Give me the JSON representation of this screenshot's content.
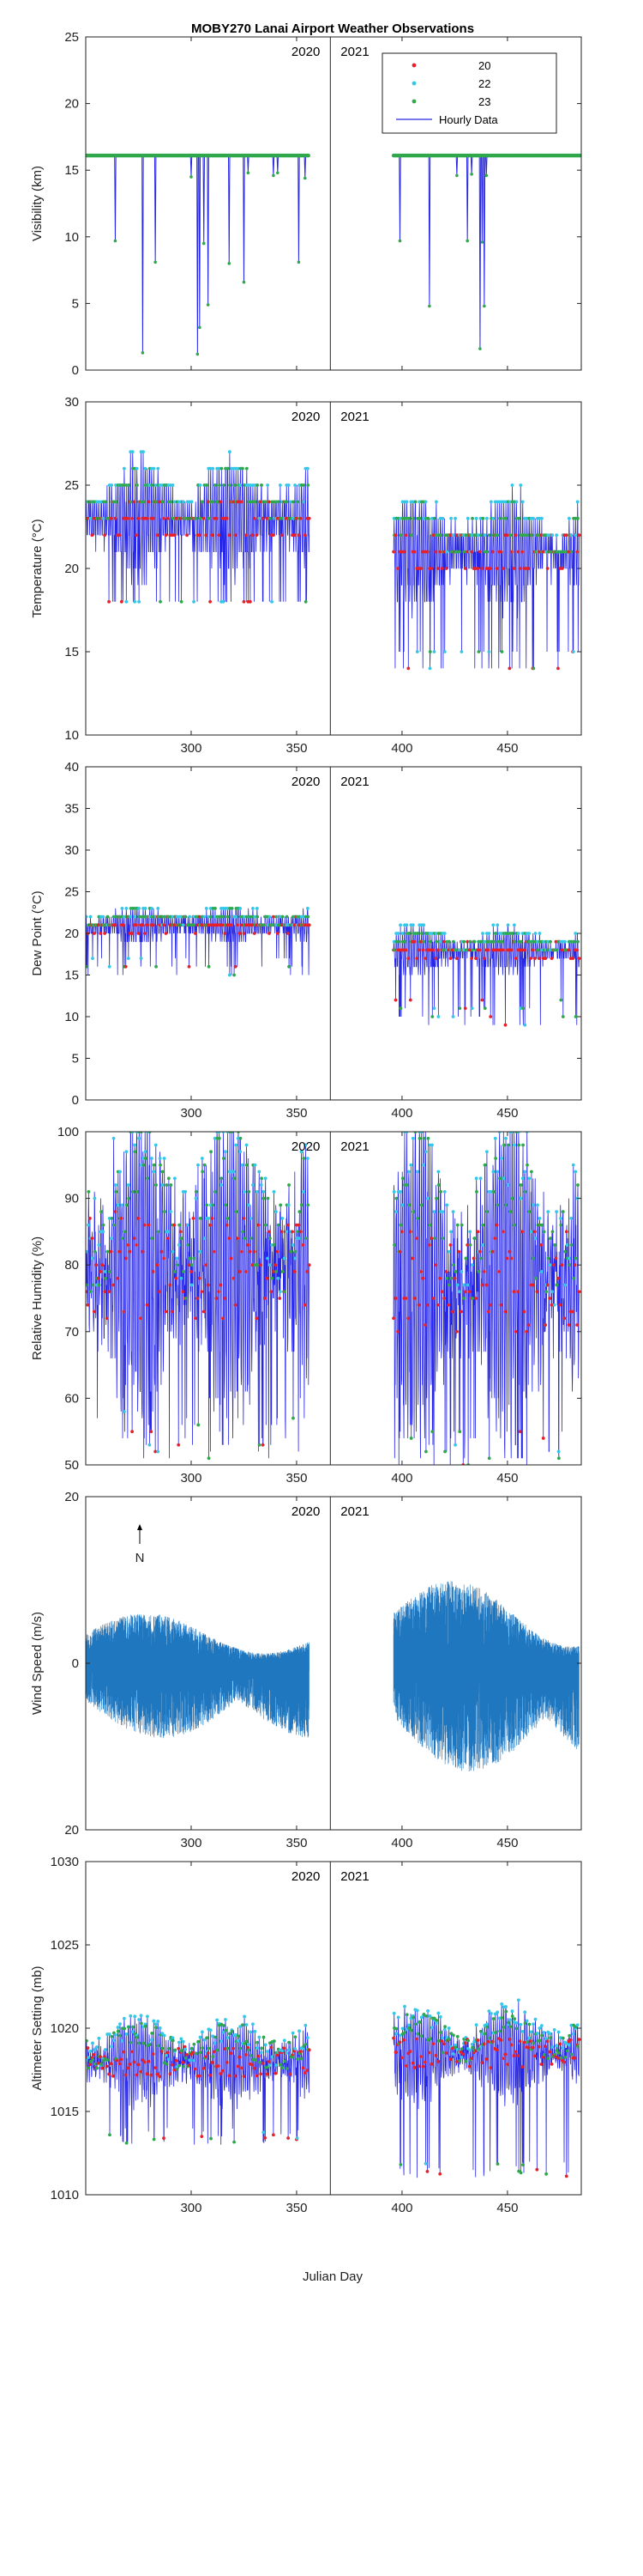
{
  "chart_data": {
    "title": "MOBY270 Lanai Airport Weather Observations",
    "xlabel": "Julian Day",
    "xlim": [
      250,
      485
    ],
    "x_ticks": [
      300,
      350,
      400,
      450
    ],
    "year_boundary": 366,
    "year_labels": [
      "2020",
      "2021"
    ],
    "legend": {
      "placement": "top-right",
      "entries": [
        {
          "label": "20",
          "color": "#e8202a",
          "marker": "dot"
        },
        {
          "label": "22",
          "color": "#33c7e8",
          "marker": "dot"
        },
        {
          "label": "23",
          "color": "#2ea84a",
          "marker": "dot"
        },
        {
          "label": "Hourly Data",
          "color": "#2626e6",
          "marker": "line"
        }
      ]
    },
    "colors": {
      "hourly": "#2626e6",
      "wind": "#1f77c0",
      "h20": "#e8202a",
      "h22": "#33c7e8",
      "h23": "#2ea84a"
    },
    "panels": [
      {
        "type": "line",
        "key": "visibility",
        "ylabel": "Visibility (km)",
        "ylim": [
          0,
          25
        ],
        "yticks": [
          0,
          5,
          10,
          15,
          20,
          25
        ],
        "xtick_labels": false,
        "segments": [
          {
            "start": 250,
            "end": 356,
            "step": 1,
            "values": [
              16.1,
              16.1,
              16.1,
              16.1,
              16.1,
              16.1,
              16.1,
              16.1,
              16.1,
              16.1,
              16.1,
              16.1,
              16.1,
              16.1,
              16.1,
              16.1,
              16.1,
              16.1,
              16.1,
              16.1,
              16.1,
              16.1,
              16.1,
              16.1,
              16.1,
              16.1,
              16.1,
              16.1,
              16.1,
              16.1,
              16.1,
              16.1,
              16.1,
              16.1,
              16.1,
              16.1,
              16.1,
              16.1,
              16.1,
              16.1,
              16.1,
              16.1,
              16.1,
              16.1,
              16.1,
              16.1,
              16.1,
              16.1,
              16.1,
              16.1,
              16.1,
              16.1,
              16.1,
              16.1,
              16.1,
              16.1,
              16.1,
              16.1,
              16.1,
              16.1,
              16.1,
              16.1,
              16.1,
              16.1,
              16.1,
              16.1,
              16.1,
              16.1,
              16.1,
              16.1,
              16.1,
              16.1,
              16.1,
              16.1,
              16.1,
              16.1,
              16.1,
              16.1,
              16.1,
              16.1,
              16.1,
              16.1,
              16.1,
              16.1,
              16.1,
              16.1,
              16.1,
              16.1,
              16.1,
              16.1,
              16.1,
              16.1,
              16.1,
              16.1,
              16.1,
              16.1,
              16.1,
              16.1,
              16.1,
              16.1,
              16.1,
              16.1,
              16.1,
              16.1,
              16.1,
              16.1,
              16.1
            ],
            "dips": [
              [
                264,
                9.7
              ],
              [
                277,
                1.3
              ],
              [
                283,
                8.1
              ],
              [
                300,
                14.5
              ],
              [
                303,
                1.2
              ],
              [
                304,
                3.2
              ],
              [
                306,
                9.5
              ],
              [
                308,
                4.9
              ],
              [
                318,
                8.0
              ],
              [
                325,
                6.6
              ],
              [
                327,
                14.8
              ],
              [
                339,
                14.6
              ],
              [
                341,
                14.8
              ],
              [
                351,
                8.1
              ],
              [
                354,
                14.4
              ]
            ]
          },
          {
            "start": 396,
            "end": 485,
            "step": 1,
            "values": [
              16.1,
              16.1,
              16.1,
              16.1,
              16.1,
              16.1,
              16.1,
              16.1,
              16.1,
              16.1,
              16.1,
              16.1,
              16.1,
              16.1,
              16.1,
              16.1,
              16.1,
              16.1,
              16.1,
              16.1,
              16.1,
              16.1,
              16.1,
              16.1,
              16.1,
              16.1,
              16.1,
              16.1,
              16.1,
              16.1,
              16.1,
              16.1,
              16.1,
              16.1,
              16.1,
              16.1,
              16.1,
              16.1,
              16.1,
              16.1,
              16.1,
              16.1,
              16.1,
              16.1,
              16.1,
              16.1,
              16.1,
              16.1,
              16.1,
              16.1,
              16.1,
              16.1,
              16.1,
              16.1,
              16.1,
              16.1,
              16.1,
              16.1,
              16.1,
              16.1,
              16.1,
              16.1,
              16.1,
              16.1,
              16.1,
              16.1,
              16.1,
              16.1,
              16.1,
              16.1,
              16.1,
              16.1,
              16.1,
              16.1,
              16.1,
              16.1,
              16.1,
              16.1,
              16.1,
              16.1,
              16.1,
              16.1,
              16.1,
              16.1,
              16.1,
              16.1,
              16.1,
              16.1,
              16.1,
              16.1
            ],
            "dips": [
              [
                399,
                9.7
              ],
              [
                413,
                4.8
              ],
              [
                426,
                14.6
              ],
              [
                431,
                9.7
              ],
              [
                433,
                14.7
              ],
              [
                437,
                1.6
              ],
              [
                438,
                9.6
              ],
              [
                439,
                4.8
              ],
              [
                440,
                14.6
              ]
            ]
          }
        ]
      },
      {
        "type": "line",
        "key": "temperature",
        "ylabel": "Temperature (°C)",
        "ylim": [
          10,
          30
        ],
        "yticks": [
          10,
          15,
          20,
          25,
          30
        ],
        "xtick_labels": true,
        "segments": [
          {
            "start": 250,
            "end": 356,
            "base": 23,
            "amp": 3.0,
            "noise": 1.0,
            "spike_lo": 18,
            "hi": 28,
            "lo": 18
          },
          {
            "start": 396,
            "end": 484,
            "base": 21,
            "amp": 3.0,
            "noise": 1.0,
            "spike_lo": 15,
            "hi": 26,
            "lo": 14
          }
        ]
      },
      {
        "type": "line",
        "key": "dew_point",
        "ylabel": "Dew Point (°C)",
        "ylim": [
          0,
          40
        ],
        "yticks": [
          0,
          5,
          10,
          15,
          20,
          25,
          30,
          35,
          40
        ],
        "xtick_labels": true,
        "segments": [
          {
            "start": 250,
            "end": 356,
            "base": 21,
            "amp": 1.8,
            "noise": 0.8,
            "spike_lo": 17,
            "hi": 25,
            "lo": 15
          },
          {
            "start": 396,
            "end": 484,
            "base": 18,
            "amp": 2.5,
            "noise": 0.8,
            "spike_lo": 12,
            "hi": 23,
            "lo": 9
          }
        ]
      },
      {
        "type": "line",
        "key": "relative_humidity",
        "ylabel": "Relative Humidity (%)",
        "ylim": [
          50,
          100
        ],
        "yticks": [
          50,
          60,
          70,
          80,
          90,
          100
        ],
        "xtick_labels": true,
        "segments": [
          {
            "start": 250,
            "end": 356,
            "base": 80,
            "amp": 20,
            "noise": 8,
            "spike_lo": 58,
            "hi": 100,
            "lo": 51
          },
          {
            "start": 396,
            "end": 484,
            "base": 78,
            "amp": 22,
            "noise": 8,
            "spike_lo": 55,
            "hi": 100,
            "lo": 50
          }
        ]
      },
      {
        "type": "stick",
        "key": "wind_speed",
        "ylabel": "Wind Speed (m/s)",
        "ylim": [
          -20,
          20
        ],
        "yticks": [
          -20,
          0,
          20
        ],
        "ytick_labels": [
          "20",
          "0",
          "20"
        ],
        "xtick_labels": true,
        "north_label": "N",
        "segments": [
          {
            "start": 250,
            "end": 356,
            "up": 6,
            "down": 9
          },
          {
            "start": 396,
            "end": 484,
            "up": 10,
            "down": 13
          }
        ]
      },
      {
        "type": "line",
        "key": "altimeter",
        "ylabel": "Altimeter Setting (mb)",
        "ylim": [
          1010,
          1030
        ],
        "yticks": [
          1010,
          1015,
          1020,
          1025,
          1030
        ],
        "xtick_labels": true,
        "segments": [
          {
            "start": 250,
            "end": 356,
            "base": 1018,
            "amp": 2.2,
            "noise": 0.9,
            "spike_lo": 1014,
            "hi": 1023,
            "lo": 1013
          },
          {
            "start": 396,
            "end": 484,
            "base": 1018.5,
            "amp": 2.5,
            "noise": 0.9,
            "spike_lo": 1012,
            "hi": 1024,
            "lo": 1011
          }
        ]
      }
    ]
  }
}
